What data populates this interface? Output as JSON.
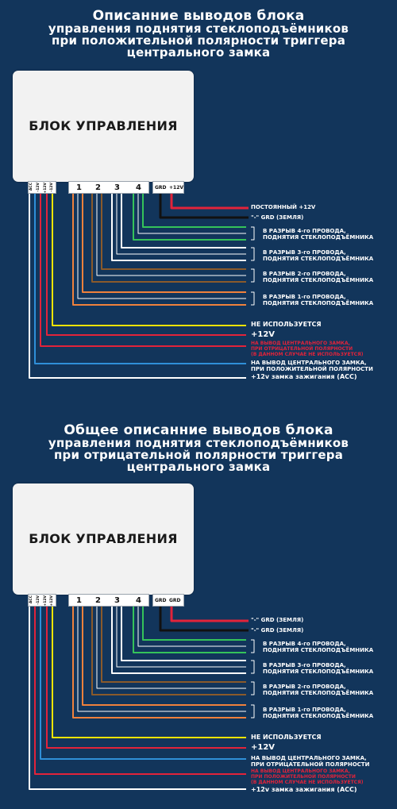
{
  "diagrams": [
    {
      "title": [
        "Описанние выводов блока",
        "управления поднятия стеклоподъёмников",
        "при положительной полярности триггера",
        "центрального замка"
      ],
      "block_label": "БЛОК УПРАВЛЕНИЯ",
      "left_pins": [
        "ACC",
        "-12V",
        "+12V",
        "-12V"
      ],
      "right_pins": [
        "1",
        "2",
        "3",
        "4"
      ],
      "extra_pins": [
        "GRD",
        "+12V"
      ],
      "labels": {
        "top1": "ПОСТОЯННЫЙ +12V",
        "top2": "\"-\" GRD (ЗЕМЛЯ)",
        "w4": [
          "В РАЗРЫВ 4-го ПРОВОДА,",
          "ПОДНЯТИЯ СТЕКЛОПОДЪЁМНИКА"
        ],
        "w3": [
          "В РАЗРЫВ 3-го ПРОВОДА,",
          "ПОДНЯТИЯ СТЕКЛОПОДЪЁМНИКА"
        ],
        "w2": [
          "В РАЗРЫВ 2-го ПРОВОДА,",
          "ПОДНЯТИЯ СТЕКЛОПОДЪЁМНИКА"
        ],
        "w1": [
          "В РАЗРЫВ 1-го ПРОВОДА,",
          "ПОДНЯТИЯ СТЕКЛОПОДЪЁМНИКА"
        ],
        "unused": "НЕ ИСПОЛЬЗУЕТСЯ",
        "plus12": "+12V",
        "red": [
          "НА ВЫВОД ЦЕНТРАЛЬНОГО ЗАМКА,",
          "ПРИ ОТРИЦАТЕЛЬНОЙ ПОЛЯРНОСТИ",
          "(В ДАННОМ СЛУЧАЕ НЕ ИСПОЛЬЗУЕТСЯ)"
        ],
        "blue": [
          "НА ВЫВОД ЦЕНТРАЛЬНОГО ЗАМКА,",
          "ПРИ ПОЛОЖИТЕЛЬНОЙ ПОЛЯРНОСТИ"
        ],
        "acc": "+12v замка зажигания (АСС)"
      }
    },
    {
      "title": [
        "Общее описанние выводов блока",
        "управления поднятия стеклоподъёмников",
        "при отрицательной полярности триггера",
        "центрального замка"
      ],
      "block_label": "БЛОК УПРАВЛЕНИЯ",
      "left_pins": [
        "ACC",
        "-12V",
        "+12V",
        "+12V"
      ],
      "right_pins": [
        "1",
        "2",
        "3",
        "4"
      ],
      "extra_pins": [
        "GRD",
        "GRD"
      ],
      "labels": {
        "top1": "\"-\" GRD (ЗЕМЛЯ)",
        "top2": "\"-\" GRD (ЗЕМЛЯ)",
        "w4": [
          "В РАЗРЫВ 4-го ПРОВОДА,",
          "ПОДНЯТИЯ СТЕКЛОПОДЪЁМНИКА"
        ],
        "w3": [
          "В РАЗРЫВ 3-го ПРОВОДА,",
          "ПОДНЯТИЯ СТЕКЛОПОДЪЁМНИКА"
        ],
        "w2": [
          "В РАЗРЫВ 2-го ПРОВОДА,",
          "ПОДНЯТИЯ СТЕКЛОПОДЪЁМНИКА"
        ],
        "w1": [
          "В РАЗРЫВ 1-го ПРОВОДА,",
          "ПОДНЯТИЯ СТЕКЛОПОДЪЁМНИКА"
        ],
        "unused": "НЕ ИСПОЛЬЗУЕТСЯ",
        "plus12": "+12V",
        "blue": [
          "НА ВЫВОД ЦЕНТРАЛЬНОГО ЗАМКА,",
          "ПРИ ОТРИЦАТЕЛЬНОЙ ПОЛЯРНОСТИ"
        ],
        "red": [
          "НА ВЫВОД ЦЕНТРАЛЬНОГО ЗАМКА,",
          "ПРИ ПОЛОЖИТЕЛЬНОЙ ПОЛЯРНОСТИ",
          "(В ДАННОМ СЛУЧАЕ НЕ ИСПОЛЬЗУЕТСЯ)"
        ],
        "acc": "+12v замка зажигания (АСС)"
      }
    }
  ],
  "colors": {
    "background": "#12355b",
    "red": "#e2233a",
    "black": "#111111",
    "green": "#35c35a",
    "brown": "#8a5a2b",
    "orange": "#f0813c",
    "yellow": "#f5e400",
    "blue": "#2f8fd8",
    "white": "#ffffff"
  }
}
